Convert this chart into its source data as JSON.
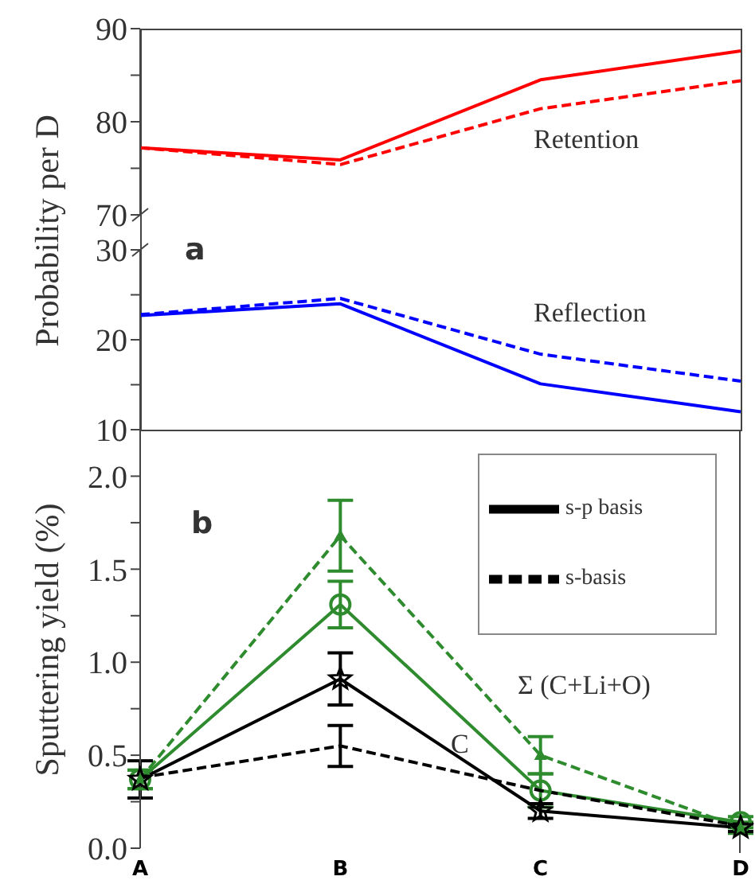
{
  "chart_data": [
    {
      "type": "line",
      "ylabel": "Probability per D",
      "categories": [
        null,
        null,
        null,
        null
      ],
      "ylim": [
        70,
        90
      ],
      "yticks": [
        70,
        {
          "value": 75,
          "label": null
        },
        80,
        {
          "value": 85,
          "label": null
        },
        90
      ],
      "tick_labels": "y",
      "annotations": [
        "Retention"
      ],
      "series": [
        {
          "color": "#ff0000",
          "values": [
            77.2,
            75.9,
            84.5,
            87.6
          ],
          "line_style": "solid"
        },
        {
          "color": "#ff0000",
          "values": [
            77.2,
            75.4,
            81.4,
            84.4
          ],
          "line_style": "dashed"
        }
      ]
    },
    {
      "type": "line",
      "categories": [
        null,
        null,
        null,
        null
      ],
      "ylim": [
        10,
        30
      ],
      "yticks": [
        10,
        {
          "value": 15,
          "label": null
        },
        20,
        {
          "value": 25,
          "label": null
        },
        30
      ],
      "tick_labels": "y",
      "annotations": [
        "a",
        "Reflection"
      ],
      "series": [
        {
          "color": "#0000ff",
          "values": [
            22.7,
            24.0,
            15.1,
            12.0
          ],
          "line_style": "solid"
        },
        {
          "color": "#0000ff",
          "values": [
            22.8,
            24.6,
            18.4,
            15.4
          ],
          "line_style": "dashed"
        }
      ]
    },
    {
      "type": "line",
      "ylabel": "Sputtering yield (%)",
      "categories": [
        "A",
        "B",
        "C",
        "D"
      ],
      "ylim": [
        0,
        2.25
      ],
      "yticks": [
        {
          "value": 0,
          "label": "0.0"
        },
        {
          "value": 0.25,
          "label": null
        },
        {
          "value": 0.5,
          "label": "0.5"
        },
        {
          "value": 0.75,
          "label": null
        },
        {
          "value": 1,
          "label": "1.0"
        },
        {
          "value": 1.25,
          "label": null
        },
        {
          "value": 1.5,
          "label": "1.5"
        },
        {
          "value": 1.75,
          "label": null
        },
        {
          "value": 2,
          "label": "2.0"
        }
      ],
      "legend": "top right",
      "annotations": [
        "b",
        "Σ (C+Li+O)",
        "C"
      ],
      "series": [
        {
          "color": "#2e8b2e",
          "values": [
            0.37,
            1.31,
            0.31,
            0.14
          ],
          "errors": [
            0.05,
            0.125,
            0.09,
            0.03
          ],
          "line_style": "solid",
          "marker": "circle"
        },
        {
          "color": "#2e8b2e",
          "values": [
            0.37,
            1.68,
            0.5,
            0.11
          ],
          "errors": [
            0.05,
            0.19,
            0.1,
            0.03
          ],
          "line_style": "dashed",
          "marker": "triangle"
        },
        {
          "name": "s-p basis",
          "color": "#000000",
          "values": [
            0.37,
            0.91,
            0.2,
            0.11
          ],
          "errors": [
            0.1,
            0.14,
            0.04,
            0.02
          ],
          "line_style": "solid",
          "marker": "star"
        },
        {
          "name": "s-basis",
          "color": "#000000",
          "values": [
            0.38,
            0.55,
            0.31,
            0.12
          ],
          "errors": [
            null,
            0.11,
            null,
            null
          ],
          "line_style": "dashed"
        }
      ]
    }
  ]
}
